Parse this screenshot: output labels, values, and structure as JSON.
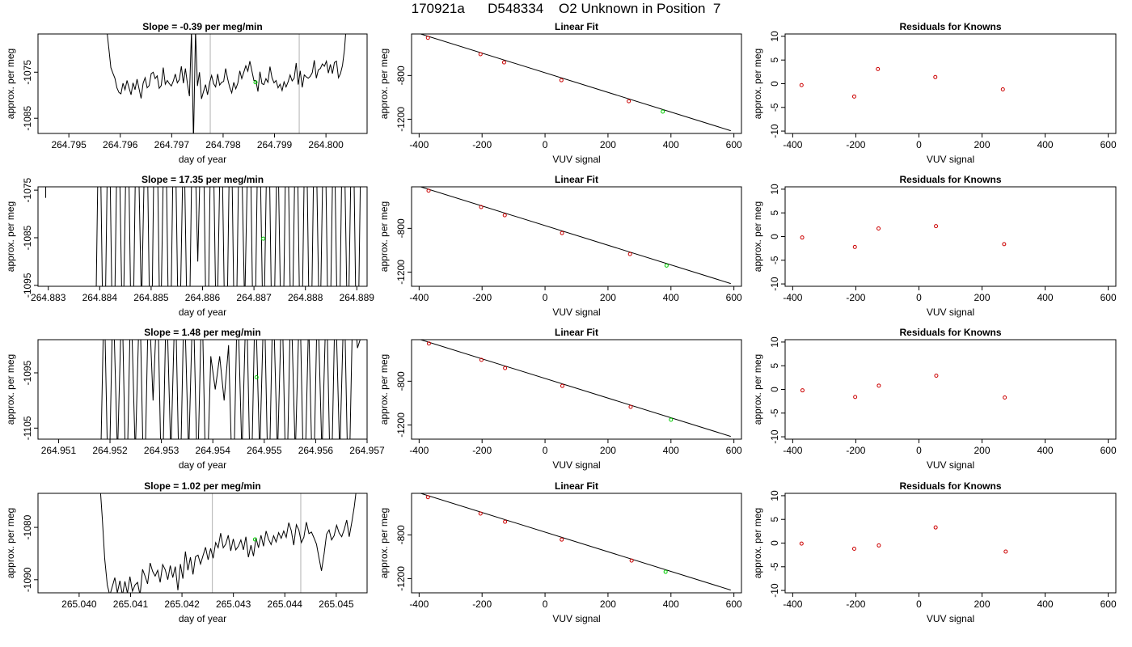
{
  "page": {
    "title": "170921a      D548334    O2 Unknown in Position  7"
  },
  "colors": {
    "axis": "#000000",
    "series_line": "#000000",
    "vline": "#bebebe",
    "known_point": "#cc0000",
    "unknown_point": "#00cc00"
  },
  "chart_data": [
    {
      "type": "line",
      "row": 1,
      "panel": "timeseries",
      "title": "Slope =  -0.39  per meg/min",
      "xlabel": "day of year",
      "ylabel": "approx. per meg",
      "xlim": [
        264.7944,
        264.8008
      ],
      "ylim": [
        -1088.3,
        -1066.7
      ],
      "xticks": [
        264.795,
        264.796,
        264.797,
        264.798,
        264.799,
        264.8
      ],
      "xtick_labels": [
        "264.795",
        "264.796",
        "264.797",
        "264.798",
        "264.799",
        "264.800"
      ],
      "yticks": [
        -1085,
        -1075
      ],
      "vlines": [
        264.79775,
        264.79948
      ],
      "unknown_point": {
        "x": 264.79863,
        "y": -1077.2
      },
      "line_x_start": 264.7957,
      "line_x_end": 264.8004,
      "line_y": [
        -1062,
        -1066,
        -1070,
        -1074,
        -1075.2,
        -1076.3,
        -1078.4,
        -1079.4,
        -1079.7,
        -1077.4,
        -1078.8,
        -1076.8,
        -1078.4,
        -1079.9,
        -1077.3,
        -1078.8,
        -1076.5,
        -1078.6,
        -1080.7,
        -1077.4,
        -1076.2,
        -1078.4,
        -1077.9,
        -1075.3,
        -1075.0,
        -1076.4,
        -1075.8,
        -1078.5,
        -1077.9,
        -1074.0,
        -1077.6,
        -1076.8,
        -1077.5,
        -1078.0,
        -1076.9,
        -1075.4,
        -1077.3,
        -1076.6,
        -1073.7,
        -1077.4,
        -1074.2,
        -1077.5,
        -1080.2,
        -1066.0,
        -1090.0,
        -1066.0,
        -1078.0,
        -1075.0,
        -1080.8,
        -1079.2,
        -1077.7,
        -1079.9,
        -1077.3,
        -1075.7,
        -1077.5,
        -1078.2,
        -1075.4,
        -1077.8,
        -1077.2,
        -1077.0,
        -1074.2,
        -1076.5,
        -1078.3,
        -1079.5,
        -1077.2,
        -1078.6,
        -1077.4,
        -1074.7,
        -1076.4,
        -1075.0,
        -1073.6,
        -1074.8,
        -1072.6,
        -1074.7,
        -1076.8,
        -1076.8,
        -1079.2,
        -1074.9,
        -1077.5,
        -1077.7,
        -1076.4,
        -1077.2,
        -1073.8,
        -1076.2,
        -1077.3,
        -1076.8,
        -1078.4,
        -1077.6,
        -1079.0,
        -1077.1,
        -1078.2,
        -1077.1,
        -1075.6,
        -1076.9,
        -1076.3,
        -1073.0,
        -1077.7,
        -1074.7,
        -1078.3,
        -1075.6,
        -1076.0,
        -1076.3,
        -1075.9,
        -1075.1,
        -1072.4,
        -1076.3,
        -1074.5,
        -1074.2,
        -1073.2,
        -1073.7,
        -1072.6,
        -1075.2,
        -1073.3,
        -1075.3,
        -1072.9,
        -1072.6,
        -1076.2,
        -1075.3,
        -1073.5,
        -1070,
        -1064
      ]
    },
    {
      "type": "scatter",
      "row": 1,
      "panel": "fit",
      "title": "Linear Fit",
      "xlabel": "VUV signal",
      "ylabel": "approx. per meg",
      "xlim": [
        -424,
        624
      ],
      "ylim": [
        -1330,
        -420
      ],
      "xticks": [
        -400,
        -200,
        0,
        200,
        400,
        600
      ],
      "yticks": [
        -1200,
        -800
      ],
      "fit_line": {
        "x": [
          -395,
          590
        ],
        "y": [
          -420,
          -1305
        ]
      },
      "knowns": {
        "x": [
          -372,
          -205,
          -130,
          52,
          266
        ],
        "y": [
          -455,
          -605,
          -680,
          -843,
          -1035
        ]
      },
      "unknown": {
        "x": 374,
        "y": -1130
      }
    },
    {
      "type": "scatter",
      "row": 1,
      "panel": "residuals",
      "title": "Residuals for Knowns",
      "xlabel": "VUV signal",
      "ylabel": "approx. per meg",
      "xlim": [
        -424,
        624
      ],
      "ylim": [
        -10.5,
        10.5
      ],
      "xticks": [
        -400,
        -200,
        0,
        200,
        400,
        600
      ],
      "yticks": [
        -10,
        -5,
        0,
        5,
        10
      ],
      "x": [
        -372,
        -205,
        -130,
        52,
        266
      ],
      "y": [
        -0.3,
        -2.7,
        3.1,
        1.4,
        -1.2
      ]
    },
    {
      "type": "line",
      "row": 2,
      "panel": "timeseries",
      "title": "Slope =  17.35  per meg/min",
      "xlabel": "day of year",
      "ylabel": "approx. per meg",
      "xlim": [
        264.8828,
        264.8892
      ],
      "ylim": [
        -1095.2,
        -1074.3
      ],
      "xticks": [
        264.883,
        264.884,
        264.885,
        264.886,
        264.887,
        264.888,
        264.889
      ],
      "xtick_labels": [
        "264.883",
        "264.884",
        "264.885",
        "264.886",
        "264.887",
        "264.888",
        "264.889"
      ],
      "yticks": [
        -1095,
        -1085,
        -1075
      ],
      "vlines": [],
      "unknown_point": {
        "x": 264.88718,
        "y": -1085.2
      },
      "line_x_start": 264.8839,
      "line_x_end": 264.8891,
      "line_y": [
        -1120,
        -1050,
        -1120,
        -1050,
        -1120,
        -1050,
        -1110,
        -1050,
        -1120,
        -1050,
        -1100,
        -1050,
        -1120,
        -1040,
        -1110,
        -1050,
        -1120,
        -1050,
        -1115,
        -1060,
        -1120,
        -1050,
        -1090,
        -1050,
        -1120,
        -1045,
        -1110,
        -1055,
        -1120,
        -1050,
        -1120,
        -1050,
        -1100,
        -1050,
        -1120,
        -1050,
        -1110,
        -1050,
        -1120,
        -1060,
        -1120,
        -1050,
        -1115,
        -1050,
        -1120,
        -1050,
        -1120,
        -1050,
        -1110,
        -1050,
        -1120,
        -1055,
        -1120,
        -1050,
        -1110,
        -1050,
        -1120,
        -1050
      ],
      "extra_stub": {
        "x": 264.88295,
        "y_top": -1074.3,
        "y_bottom": -1075.6
      }
    },
    {
      "type": "scatter",
      "row": 2,
      "panel": "fit",
      "title": "Linear Fit",
      "xlabel": "VUV signal",
      "ylabel": "approx. per meg",
      "xlim": [
        -424,
        624
      ],
      "ylim": [
        -1330,
        -420
      ],
      "xticks": [
        -400,
        -200,
        0,
        200,
        400,
        600
      ],
      "yticks": [
        -1200,
        -800
      ],
      "fit_line": {
        "x": [
          -395,
          590
        ],
        "y": [
          -420,
          -1305
        ]
      },
      "knowns": {
        "x": [
          -370,
          -203,
          -128,
          54,
          270
        ],
        "y": [
          -455,
          -605,
          -680,
          -843,
          -1035
        ]
      },
      "unknown": {
        "x": 386,
        "y": -1140
      }
    },
    {
      "type": "scatter",
      "row": 2,
      "panel": "residuals",
      "title": "Residuals for Knowns",
      "xlabel": "VUV signal",
      "ylabel": "approx. per meg",
      "xlim": [
        -424,
        624
      ],
      "ylim": [
        -10.5,
        10.5
      ],
      "xticks": [
        -400,
        -200,
        0,
        200,
        400,
        600
      ],
      "yticks": [
        -10,
        -5,
        0,
        5,
        10
      ],
      "x": [
        -370,
        -203,
        -128,
        54,
        270
      ],
      "y": [
        -0.2,
        -2.2,
        1.7,
        2.2,
        -1.6
      ]
    },
    {
      "type": "line",
      "row": 3,
      "panel": "timeseries",
      "title": "Slope =  1.48  per meg/min",
      "xlabel": "day of year",
      "ylabel": "approx. per meg",
      "xlim": [
        264.9506,
        264.957
      ],
      "ylim": [
        -1107,
        -1089
      ],
      "xticks": [
        264.951,
        264.952,
        264.953,
        264.954,
        264.955,
        264.956,
        264.957
      ],
      "xtick_labels": [
        "264.951",
        "264.952",
        "264.953",
        "264.954",
        "264.955",
        "264.956",
        "264.957"
      ],
      "yticks": [
        -1105,
        -1095
      ],
      "vlines": [],
      "unknown_point": {
        "x": 264.95485,
        "y": -1095.8
      },
      "line_x_start": 264.9518,
      "line_x_end": 264.9569,
      "line_y": [
        -1120,
        -1080,
        -1120,
        -1080,
        -1110,
        -1080,
        -1120,
        -1080,
        -1110,
        -1080,
        -1120,
        -1080,
        -1100,
        -1080,
        -1120,
        -1080,
        -1110,
        -1080,
        -1120,
        -1080,
        -1110,
        -1080,
        -1115,
        -1080,
        -1120,
        -1092,
        -1098,
        -1092,
        -1100,
        -1090,
        -1120,
        -1080,
        -1110,
        -1080,
        -1120,
        -1080,
        -1110,
        -1080,
        -1120,
        -1080,
        -1110,
        -1080,
        -1120,
        -1080,
        -1110,
        -1080,
        -1120,
        -1085,
        -1120,
        -1080,
        -1110,
        -1080,
        -1120,
        -1080,
        -1110,
        -1080,
        -1120,
        -1080,
        -1090.5,
        -1088
      ]
    },
    {
      "type": "scatter",
      "row": 3,
      "panel": "fit",
      "title": "Linear Fit",
      "xlabel": "VUV signal",
      "ylabel": "approx. per meg",
      "xlim": [
        -424,
        624
      ],
      "ylim": [
        -1330,
        -420
      ],
      "xticks": [
        -400,
        -200,
        0,
        200,
        400,
        600
      ],
      "yticks": [
        -1200,
        -800
      ],
      "fit_line": {
        "x": [
          -395,
          590
        ],
        "y": [
          -420,
          -1305
        ]
      },
      "knowns": {
        "x": [
          -369,
          -202,
          -127,
          55,
          272
        ],
        "y": [
          -455,
          -605,
          -680,
          -843,
          -1035
        ]
      },
      "unknown": {
        "x": 400,
        "y": -1152
      }
    },
    {
      "type": "scatter",
      "row": 3,
      "panel": "residuals",
      "title": "Residuals for Knowns",
      "xlabel": "VUV signal",
      "ylabel": "approx. per meg",
      "xlim": [
        -424,
        624
      ],
      "ylim": [
        -10.5,
        10.5
      ],
      "xticks": [
        -400,
        -200,
        0,
        200,
        400,
        600
      ],
      "yticks": [
        -10,
        -5,
        0,
        5,
        10
      ],
      "x": [
        -369,
        -202,
        -127,
        55,
        272
      ],
      "y": [
        -0.2,
        -1.6,
        0.8,
        2.9,
        -1.7
      ]
    },
    {
      "type": "line",
      "row": 4,
      "panel": "timeseries",
      "title": "Slope =  1.02  per meg/min",
      "xlabel": "day of year",
      "ylabel": "approx. per meg",
      "xlim": [
        265.0392,
        265.0456
      ],
      "ylim": [
        -1092.5,
        -1073.5
      ],
      "xticks": [
        265.04,
        265.041,
        265.042,
        265.043,
        265.044,
        265.045
      ],
      "xtick_labels": [
        "265.040",
        "265.041",
        "265.042",
        "265.043",
        "265.044",
        "265.045"
      ],
      "yticks": [
        -1090,
        -1080
      ],
      "vlines": [
        265.04259,
        265.04431
      ],
      "unknown_point": {
        "x": 265.04342,
        "y": -1082.3
      },
      "line_x_start": 265.0404,
      "line_x_end": 265.0454,
      "line_y": [
        -1071,
        -1078,
        -1086,
        -1091,
        -1093,
        -1091.3,
        -1089.6,
        -1092.5,
        -1090.2,
        -1093,
        -1090.3,
        -1092.6,
        -1089.4,
        -1092.2,
        -1091.0,
        -1090.5,
        -1093,
        -1088.0,
        -1089.3,
        -1090.8,
        -1086.8,
        -1088.4,
        -1089.3,
        -1088.2,
        -1090.5,
        -1087.1,
        -1088.1,
        -1090.0,
        -1087.3,
        -1089.6,
        -1087.5,
        -1092.0,
        -1087.0,
        -1089.8,
        -1084.6,
        -1088.2,
        -1085.7,
        -1089.0,
        -1085.6,
        -1085.3,
        -1087.0,
        -1085.4,
        -1083.8,
        -1086.2,
        -1084.0,
        -1085.9,
        -1082.9,
        -1083.9,
        -1081.1,
        -1083.9,
        -1083.2,
        -1081.5,
        -1084.5,
        -1082.2,
        -1084.3,
        -1083.6,
        -1082.4,
        -1084.3,
        -1081.8,
        -1085.7,
        -1083.4,
        -1085.5,
        -1082.0,
        -1083.9,
        -1081.5,
        -1083.6,
        -1080.7,
        -1082.3,
        -1083.3,
        -1081.6,
        -1082.8,
        -1081.0,
        -1082.1,
        -1080.7,
        -1081.9,
        -1079.1,
        -1080.6,
        -1083.4,
        -1079.5,
        -1080.5,
        -1082.9,
        -1081.9,
        -1079.0,
        -1081.2,
        -1080.9,
        -1082.0,
        -1083.2,
        -1085.8,
        -1088.3,
        -1085.1,
        -1081.3,
        -1080.5,
        -1082.4,
        -1081.6,
        -1079.6,
        -1081.1,
        -1081.8,
        -1080.4,
        -1078.6,
        -1081.8,
        -1079.1,
        -1076,
        -1072
      ]
    },
    {
      "type": "scatter",
      "row": 4,
      "panel": "fit",
      "title": "Linear Fit",
      "xlabel": "VUV signal",
      "ylabel": "approx. per meg",
      "xlim": [
        -424,
        624
      ],
      "ylim": [
        -1330,
        -420
      ],
      "xticks": [
        -400,
        -200,
        0,
        200,
        400,
        600
      ],
      "yticks": [
        -1200,
        -800
      ],
      "fit_line": {
        "x": [
          -395,
          590
        ],
        "y": [
          -420,
          -1305
        ]
      },
      "knowns": {
        "x": [
          -372,
          -205,
          -127,
          53,
          275
        ],
        "y": [
          -455,
          -605,
          -680,
          -843,
          -1035
        ]
      },
      "unknown": {
        "x": 383,
        "y": -1138
      }
    },
    {
      "type": "scatter",
      "row": 4,
      "panel": "residuals",
      "title": "Residuals for Knowns",
      "xlabel": "VUV signal",
      "ylabel": "approx. per meg",
      "xlim": [
        -424,
        624
      ],
      "ylim": [
        -10.5,
        10.5
      ],
      "xticks": [
        -400,
        -200,
        0,
        200,
        400,
        600
      ],
      "yticks": [
        -10,
        -5,
        0,
        5,
        10
      ],
      "x": [
        -372,
        -205,
        -127,
        53,
        275
      ],
      "y": [
        -0.1,
        -1.2,
        -0.5,
        3.3,
        -1.8
      ]
    }
  ]
}
